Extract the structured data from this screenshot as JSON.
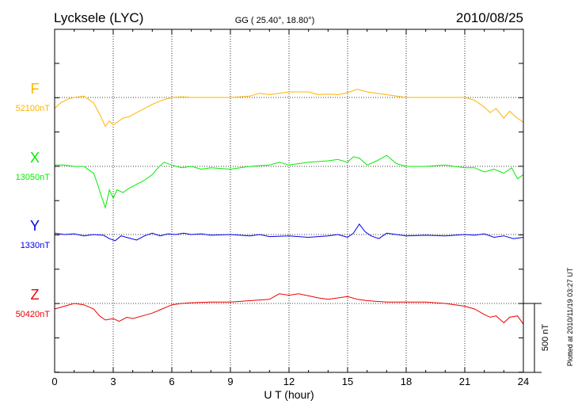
{
  "chart_data": {
    "type": "line",
    "title": "Lycksele (LYC)",
    "subtitle": "GG ( 25.40°,  18.80°)",
    "date": "2010/08/25",
    "xlabel": "U T (hour)",
    "xlim": [
      0,
      24
    ],
    "x_ticks": [
      "0",
      "3",
      "6",
      "9",
      "12",
      "15",
      "18",
      "21",
      "24"
    ],
    "scale_label": "500 nT",
    "scale_nT": 500,
    "plotted_note": "Plotted at 2010/11/19 03:27 UT",
    "grid": true,
    "series": [
      {
        "name": "F",
        "baseline_label": "52100nT",
        "baseline": 52100,
        "color": "#ffb400",
        "x": [
          0,
          0.3,
          0.7,
          1.0,
          1.5,
          2.0,
          2.3,
          2.6,
          2.8,
          3.0,
          3.2,
          3.5,
          3.8,
          4.2,
          4.6,
          5.0,
          5.5,
          6.0,
          6.5,
          7.0,
          8.0,
          9.0,
          10.0,
          10.5,
          11.0,
          12.0,
          13.0,
          13.5,
          14.0,
          14.5,
          15.0,
          15.5,
          16.0,
          17.0,
          18.0,
          19.0,
          20.0,
          21.0,
          21.5,
          22.0,
          22.3,
          22.6,
          23.0,
          23.3,
          23.6,
          24.0
        ],
        "values": [
          52020,
          52060,
          52090,
          52100,
          52110,
          52060,
          51980,
          51890,
          51930,
          51900,
          51920,
          51950,
          51960,
          51990,
          52020,
          52050,
          52080,
          52100,
          52105,
          52100,
          52100,
          52100,
          52110,
          52130,
          52120,
          52140,
          52140,
          52120,
          52125,
          52120,
          52135,
          52160,
          52140,
          52120,
          52100,
          52100,
          52100,
          52100,
          52080,
          52030,
          51990,
          52020,
          51950,
          52000,
          51960,
          51920
        ]
      },
      {
        "name": "X",
        "baseline_label": "13050nT",
        "baseline": 13050,
        "color": "#00ee00",
        "x": [
          0,
          0.5,
          1.0,
          1.5,
          2.0,
          2.2,
          2.4,
          2.6,
          2.8,
          3.0,
          3.2,
          3.5,
          3.8,
          4.2,
          4.6,
          5.0,
          5.3,
          5.6,
          6.0,
          6.5,
          7.0,
          7.5,
          8.0,
          9.0,
          10.0,
          11.0,
          11.5,
          12.0,
          13.0,
          14.0,
          14.5,
          15.0,
          15.3,
          15.6,
          16.0,
          16.5,
          17.0,
          17.5,
          18.0,
          19.0,
          20.0,
          21.0,
          21.5,
          22.0,
          22.5,
          23.0,
          23.4,
          23.7,
          24.0
        ],
        "values": [
          13060,
          13060,
          13050,
          13050,
          13000,
          12920,
          12830,
          12750,
          12880,
          12820,
          12880,
          12860,
          12890,
          12920,
          12950,
          12990,
          13040,
          13080,
          13060,
          13040,
          13050,
          13030,
          13040,
          13030,
          13050,
          13060,
          13080,
          13060,
          13080,
          13090,
          13100,
          13080,
          13120,
          13110,
          13060,
          13090,
          13130,
          13070,
          13050,
          13050,
          13060,
          13040,
          13040,
          13010,
          13030,
          13000,
          13040,
          12960,
          12990
        ]
      },
      {
        "name": "Y",
        "baseline_label": "1330nT",
        "baseline": 1330,
        "color": "#0000ee",
        "x": [
          0,
          0.5,
          1.0,
          1.5,
          2.0,
          2.5,
          2.8,
          3.1,
          3.4,
          3.8,
          4.2,
          4.6,
          5.0,
          5.4,
          5.8,
          6.2,
          6.6,
          7.0,
          7.5,
          8.0,
          9.0,
          10.0,
          10.5,
          11.0,
          12.0,
          13.0,
          14.0,
          14.5,
          15.0,
          15.3,
          15.6,
          15.9,
          16.2,
          16.6,
          17.0,
          17.5,
          18.0,
          19.0,
          20.0,
          21.0,
          21.5,
          22.0,
          22.5,
          23.0,
          23.5,
          24.0
        ],
        "values": [
          1340,
          1330,
          1335,
          1320,
          1330,
          1325,
          1300,
          1285,
          1320,
          1305,
          1290,
          1320,
          1340,
          1320,
          1335,
          1330,
          1340,
          1330,
          1335,
          1325,
          1330,
          1320,
          1330,
          1315,
          1320,
          1310,
          1320,
          1330,
          1310,
          1340,
          1405,
          1350,
          1320,
          1300,
          1340,
          1330,
          1320,
          1325,
          1320,
          1330,
          1325,
          1335,
          1310,
          1320,
          1300,
          1310
        ]
      },
      {
        "name": "Z",
        "baseline_label": "50420nT",
        "baseline": 50420,
        "color": "#ee0000",
        "x": [
          0,
          0.5,
          1.0,
          1.5,
          2.0,
          2.3,
          2.6,
          3.0,
          3.3,
          3.7,
          4.0,
          4.5,
          5.0,
          5.5,
          6.0,
          6.5,
          7.0,
          8.0,
          9.0,
          10.0,
          11.0,
          11.5,
          12.0,
          12.5,
          13.0,
          13.5,
          14.0,
          14.5,
          15.0,
          15.5,
          16.0,
          17.0,
          18.0,
          19.0,
          20.0,
          21.0,
          21.5,
          22.0,
          22.3,
          22.6,
          23.0,
          23.3,
          23.7,
          24.0
        ],
        "values": [
          50380,
          50400,
          50420,
          50410,
          50380,
          50330,
          50300,
          50310,
          50290,
          50320,
          50310,
          50330,
          50350,
          50380,
          50410,
          50420,
          50425,
          50430,
          50430,
          50440,
          50450,
          50490,
          50480,
          50490,
          50475,
          50460,
          50450,
          50460,
          50470,
          50450,
          50440,
          50430,
          50430,
          50430,
          50420,
          50400,
          50380,
          50340,
          50320,
          50330,
          50280,
          50320,
          50330,
          50270
        ]
      }
    ]
  }
}
